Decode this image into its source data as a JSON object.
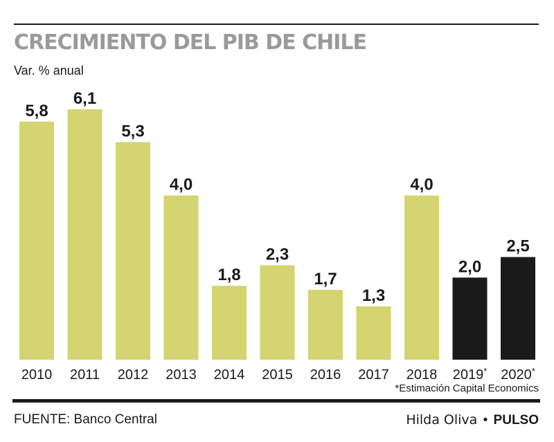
{
  "chart_data": {
    "type": "bar",
    "title": "CRECIMIENTO DEL PIB DE CHILE",
    "ylabel": "Var. % anual",
    "categories": [
      "2010",
      "2011",
      "2012",
      "2013",
      "2014",
      "2015",
      "2016",
      "2017",
      "2018",
      "2019*",
      "2020*"
    ],
    "values": [
      5.8,
      6.1,
      5.3,
      4.0,
      1.8,
      2.3,
      1.7,
      1.3,
      4.0,
      2.0,
      2.5
    ],
    "value_labels": [
      "5,8",
      "6,1",
      "5,3",
      "4,0",
      "1,8",
      "2,3",
      "1,7",
      "1,3",
      "4,0",
      "2,0",
      "2,5"
    ],
    "estimated": [
      false,
      false,
      false,
      false,
      false,
      false,
      false,
      false,
      false,
      true,
      true
    ],
    "ylim": [
      0,
      6.1
    ],
    "grid": false,
    "colors": {
      "actual": "#d4d470",
      "estimate": "#1a1a1a"
    }
  },
  "footnote": "*Estimación Capital Economics",
  "source": "FUENTE: Banco Central",
  "credit": {
    "author": "Hilda Oliva",
    "separator": "•",
    "brand": "PULSO"
  }
}
